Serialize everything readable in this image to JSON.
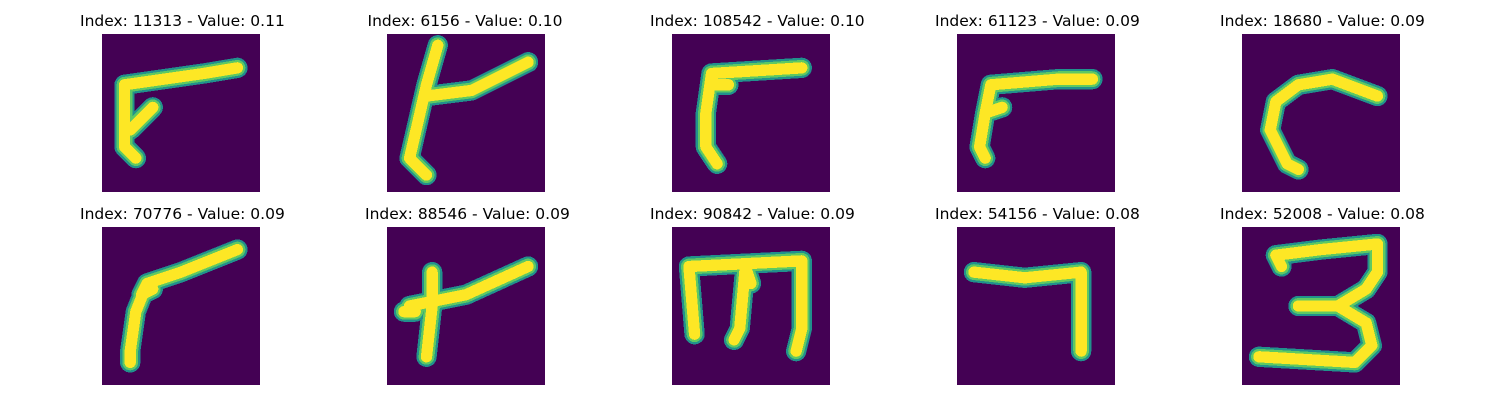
{
  "colors": {
    "background": "#440154",
    "stroke_edge": "#21918c",
    "stroke_mid": "#5ec962",
    "stroke_core": "#fde725"
  },
  "panels": [
    {
      "title": "Index: 11313 - Value: 0.11",
      "glyph": "hook-left"
    },
    {
      "title": "Index: 6156 - Value: 0.10",
      "glyph": "y-cross"
    },
    {
      "title": "Index: 108542 - Value: 0.10",
      "glyph": "gamma-thick"
    },
    {
      "title": "Index: 61123 - Value: 0.09",
      "glyph": "hook-thin"
    },
    {
      "title": "Index: 18680 - Value: 0.09",
      "glyph": "c-curve"
    },
    {
      "title": "Index: 70776 - Value: 0.09",
      "glyph": "loop-seven"
    },
    {
      "title": "Index: 88546 - Value: 0.09",
      "glyph": "y-short"
    },
    {
      "title": "Index: 90842 - Value: 0.09",
      "glyph": "m-shape"
    },
    {
      "title": "Index: 54156 - Value: 0.08",
      "glyph": "seven"
    },
    {
      "title": "Index: 52008 - Value: 0.08",
      "glyph": "three"
    }
  ]
}
